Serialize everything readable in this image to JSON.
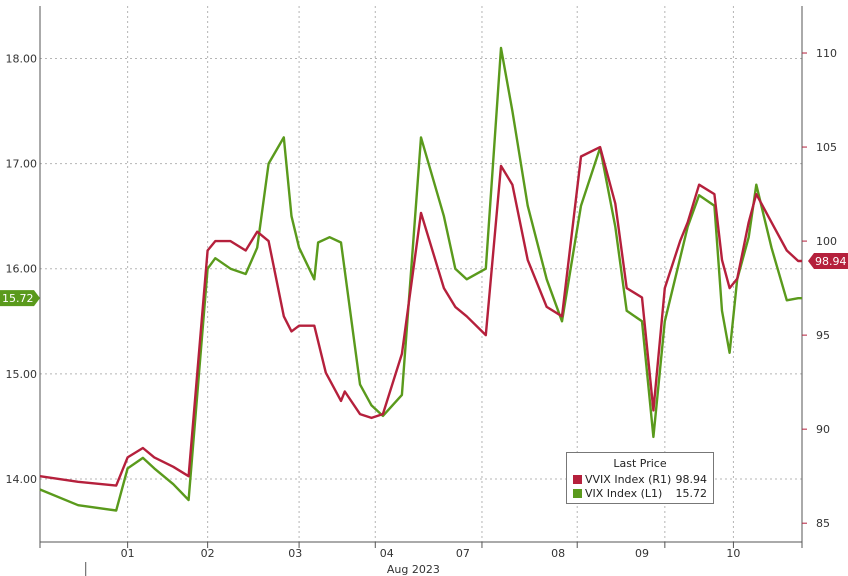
{
  "chart_data": {
    "type": "line",
    "x_label": "Aug 2023",
    "x_ticks": [
      "01",
      "02",
      "03",
      "04",
      "07",
      "08",
      "09",
      "10"
    ],
    "left_axis": {
      "ticks": [
        "14.00",
        "15.00",
        "16.00",
        "17.00",
        "18.00"
      ],
      "range": [
        13.4,
        18.5
      ]
    },
    "right_axis": {
      "ticks": [
        "85",
        "90",
        "95",
        "100",
        "105",
        "110"
      ],
      "range": [
        84,
        112.5
      ]
    },
    "legend": {
      "title": "Last Price",
      "entries": [
        {
          "label": "VVIX Index  (R1)",
          "value": "98.94",
          "color": "#b5203c"
        },
        {
          "label": "VIX Index  (L1)",
          "value": "15.72",
          "color": "#5a9a1c"
        }
      ]
    },
    "last_value_tags": {
      "left": "15.72",
      "right": "98.94"
    },
    "series": [
      {
        "name": "VIX Index (L1)",
        "axis": "left",
        "color": "#5a9a1c",
        "x": [
          0,
          0.5,
          1,
          1.15,
          1.35,
          1.5,
          1.75,
          1.95,
          2.2,
          2.3,
          2.5,
          2.7,
          2.85,
          3.0,
          3.2,
          3.3,
          3.4,
          3.6,
          3.65,
          3.8,
          3.95,
          4.2,
          4.35,
          4.5,
          4.75,
          5.0,
          5.3,
          5.45,
          5.6,
          5.85,
          6.05,
          6.2,
          6.4,
          6.65,
          6.85,
          7.1,
          7.35,
          7.55,
          7.7,
          7.9,
          8.05,
          8.2,
          8.4,
          8.5,
          8.65,
          8.85,
          8.95,
          9.05,
          9.15,
          9.3,
          9.4,
          9.6,
          9.8,
          9.95,
          10.0
        ],
        "y": [
          13.9,
          13.75,
          13.7,
          14.1,
          14.2,
          14.1,
          13.95,
          13.8,
          16.0,
          16.1,
          16.0,
          15.95,
          16.2,
          17.0,
          17.25,
          16.5,
          16.2,
          15.9,
          16.25,
          16.3,
          16.25,
          14.9,
          14.7,
          14.6,
          14.8,
          17.25,
          16.5,
          16.0,
          15.9,
          16.0,
          18.1,
          17.5,
          16.6,
          15.9,
          15.5,
          16.6,
          17.15,
          16.4,
          15.6,
          15.5,
          14.4,
          15.5,
          16.1,
          16.4,
          16.7,
          16.6,
          15.6,
          15.2,
          15.9,
          16.3,
          16.8,
          16.2,
          15.7,
          15.72,
          15.72
        ]
      },
      {
        "name": "VVIX Index (R1)",
        "axis": "right",
        "color": "#b5203c",
        "x": [
          0,
          0.5,
          1,
          1.15,
          1.35,
          1.5,
          1.75,
          1.95,
          2.2,
          2.3,
          2.5,
          2.7,
          2.85,
          3.0,
          3.2,
          3.3,
          3.4,
          3.6,
          3.75,
          3.95,
          4.0,
          4.2,
          4.35,
          4.5,
          4.75,
          5.0,
          5.3,
          5.45,
          5.6,
          5.85,
          6.05,
          6.2,
          6.4,
          6.65,
          6.85,
          7.1,
          7.35,
          7.55,
          7.7,
          7.9,
          8.05,
          8.2,
          8.4,
          8.5,
          8.65,
          8.85,
          8.95,
          9.05,
          9.15,
          9.3,
          9.4,
          9.6,
          9.8,
          9.95,
          10.0
        ],
        "y": [
          87.5,
          87.2,
          87.0,
          88.5,
          89.0,
          88.5,
          88.0,
          87.5,
          99.5,
          100.0,
          100.0,
          99.5,
          100.5,
          100.0,
          96.0,
          95.2,
          95.5,
          95.5,
          93.0,
          91.5,
          92.0,
          90.8,
          90.6,
          90.8,
          94.0,
          101.5,
          97.5,
          96.5,
          96.0,
          95.0,
          104.0,
          103.0,
          99.0,
          96.5,
          96.0,
          104.5,
          105.0,
          102.0,
          97.5,
          97.0,
          91.0,
          97.5,
          100.0,
          101.0,
          103.0,
          102.5,
          99.0,
          97.5,
          98.0,
          101.0,
          102.5,
          101.0,
          99.5,
          98.94,
          98.94
        ]
      }
    ]
  }
}
